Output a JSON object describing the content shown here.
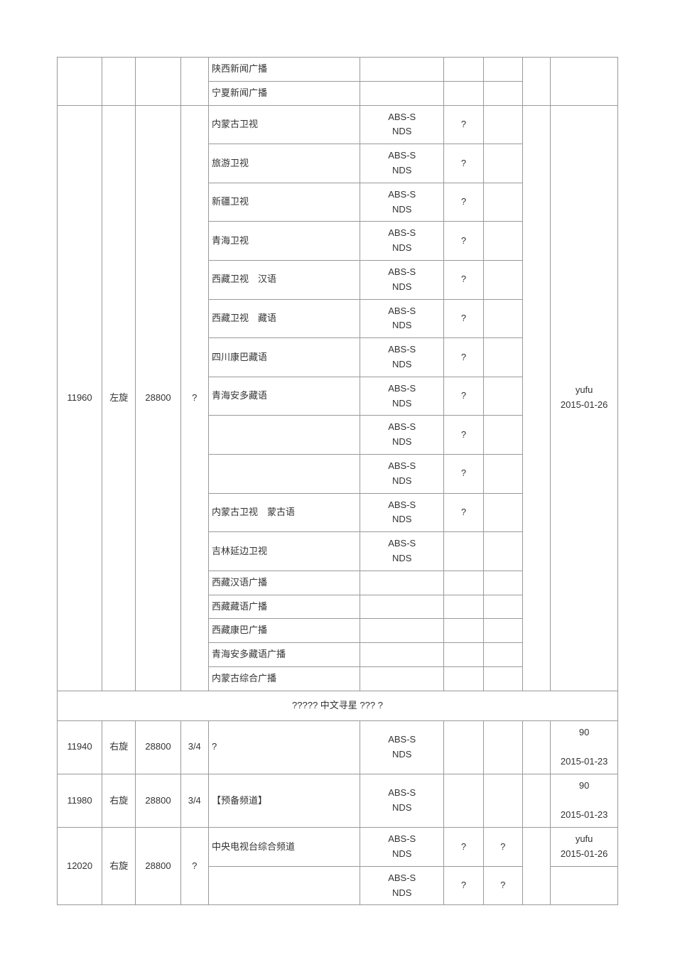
{
  "encryption": "ABS-S\nNDS",
  "qmark": "?",
  "separator_text": "?????  中文寻星  ??? ?",
  "top_group": {
    "channels": [
      "陕西新闻广播",
      "宁夏新闻广播"
    ]
  },
  "group_11960": {
    "freq": "11960",
    "pol": "左旋",
    "sr": "28800",
    "fec": "?",
    "source": "yufu\n2015-01-26",
    "channels": [
      {
        "name": "内蒙古卫视",
        "enc": true,
        "v": "?"
      },
      {
        "name": "旅游卫视",
        "enc": true,
        "v": "?"
      },
      {
        "name": "新疆卫视",
        "enc": true,
        "v": "?"
      },
      {
        "name": "青海卫视",
        "enc": true,
        "v": "?"
      },
      {
        "name": "西藏卫视　汉语",
        "enc": true,
        "v": "?"
      },
      {
        "name": "西藏卫视　藏语",
        "enc": true,
        "v": "?"
      },
      {
        "name": "四川康巴藏语",
        "enc": true,
        "v": "?"
      },
      {
        "name": "青海安多藏语",
        "enc": true,
        "v": "?"
      },
      {
        "name": "",
        "enc": true,
        "v": "?"
      },
      {
        "name": "",
        "enc": true,
        "v": "?"
      },
      {
        "name": "内蒙古卫视　蒙古语",
        "enc": true,
        "v": "?"
      },
      {
        "name": "吉林延边卫视",
        "enc": true,
        "v": ""
      },
      {
        "name": "西藏汉语广播",
        "enc": false,
        "v": ""
      },
      {
        "name": "西藏藏语广播",
        "enc": false,
        "v": ""
      },
      {
        "name": "西藏康巴广播",
        "enc": false,
        "v": ""
      },
      {
        "name": "青海安多藏语广播",
        "enc": false,
        "v": ""
      },
      {
        "name": "内蒙古综合广播",
        "enc": false,
        "v": ""
      }
    ]
  },
  "group_11940": {
    "freq": "11940",
    "pol": "右旋",
    "sr": "28800",
    "fec": "3/4",
    "name": "?",
    "v": "",
    "a": "",
    "source": "90\n\n2015-01-23"
  },
  "group_11980": {
    "freq": "11980",
    "pol": "右旋",
    "sr": "28800",
    "fec": "3/4",
    "name": "【预备频道】",
    "v": "",
    "a": "",
    "source": "90\n\n2015-01-23"
  },
  "group_12020": {
    "freq": "12020",
    "pol": "右旋",
    "sr": "28800",
    "fec": "?",
    "source": "yufu\n2015-01-26",
    "channels": [
      {
        "name": "中央电视台综合频道",
        "v": "?",
        "a": "?"
      },
      {
        "name": "",
        "v": "?",
        "a": "?"
      }
    ]
  }
}
